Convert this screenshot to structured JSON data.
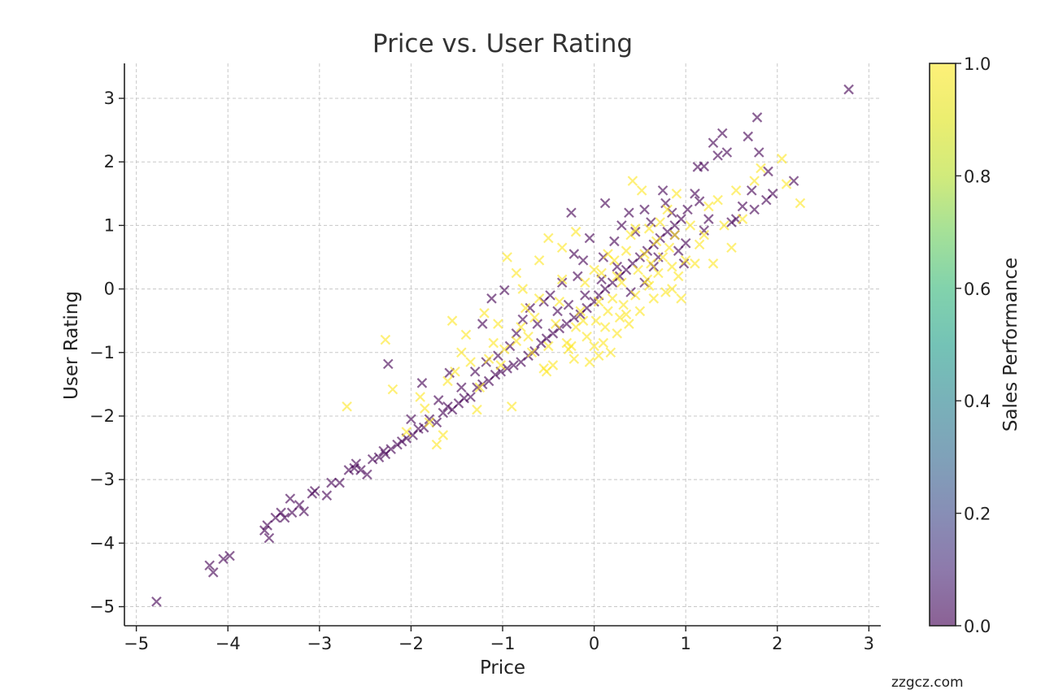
{
  "chart_data": {
    "type": "scatter",
    "title": "Price vs. User Rating",
    "xlabel": "Price",
    "ylabel": "User Rating",
    "xlim": [
      -5.13,
      3.13
    ],
    "ylim": [
      -5.3,
      3.55
    ],
    "xticks": [
      -5,
      -4,
      -3,
      -2,
      -1,
      0,
      1,
      2,
      3
    ],
    "xtick_labels": [
      "−5",
      "−4",
      "−3",
      "−2",
      "−1",
      "0",
      "1",
      "2",
      "3"
    ],
    "yticks": [
      -5,
      -4,
      -3,
      -2,
      -1,
      0,
      1,
      2,
      3
    ],
    "ytick_labels": [
      "−5",
      "−4",
      "−3",
      "−2",
      "−1",
      "0",
      "1",
      "2",
      "3"
    ],
    "grid": true,
    "marker": "x",
    "colorbar": {
      "label": "Sales Performance",
      "range": [
        0,
        1
      ],
      "ticks": [
        0.0,
        0.2,
        0.4,
        0.6,
        0.8,
        1.0
      ],
      "tick_labels": [
        "0.0",
        "0.2",
        "0.4",
        "0.6",
        "0.8",
        "1.0"
      ],
      "colormap": "viridis"
    },
    "series": [
      {
        "name": "Sales Performance = 0",
        "color_value": 0,
        "color": "#440154",
        "points": [
          [
            -4.78,
            -4.92
          ],
          [
            -4.2,
            -4.35
          ],
          [
            -4.16,
            -4.46
          ],
          [
            -4.05,
            -4.25
          ],
          [
            -3.98,
            -4.2
          ],
          [
            -3.6,
            -3.8
          ],
          [
            -3.57,
            -3.72
          ],
          [
            -3.55,
            -3.92
          ],
          [
            -3.48,
            -3.6
          ],
          [
            -3.42,
            -3.52
          ],
          [
            -3.38,
            -3.6
          ],
          [
            -3.3,
            -3.52
          ],
          [
            -3.22,
            -3.4
          ],
          [
            -3.17,
            -3.5
          ],
          [
            -3.08,
            -3.22
          ],
          [
            -2.92,
            -3.25
          ],
          [
            -2.87,
            -3.05
          ],
          [
            -2.78,
            -3.05
          ],
          [
            -2.68,
            -2.85
          ],
          [
            -2.62,
            -2.82
          ],
          [
            -2.55,
            -2.85
          ],
          [
            -2.48,
            -2.92
          ],
          [
            -2.42,
            -2.68
          ],
          [
            -2.35,
            -2.65
          ],
          [
            -2.28,
            -2.6
          ],
          [
            -2.22,
            -2.52
          ],
          [
            -2.15,
            -2.45
          ],
          [
            -2.1,
            -2.4
          ],
          [
            -2.05,
            -2.35
          ],
          [
            -1.98,
            -2.3
          ],
          [
            -1.92,
            -2.2
          ],
          [
            -1.86,
            -2.18
          ],
          [
            -1.8,
            -2.05
          ],
          [
            -1.72,
            -2.1
          ],
          [
            -1.65,
            -1.95
          ],
          [
            -1.6,
            -1.85
          ],
          [
            -1.55,
            -1.9
          ],
          [
            -1.48,
            -1.8
          ],
          [
            -1.42,
            -1.72
          ],
          [
            -1.35,
            -1.7
          ],
          [
            -1.28,
            -1.55
          ],
          [
            -1.22,
            -1.5
          ],
          [
            -1.15,
            -1.45
          ],
          [
            -1.08,
            -1.35
          ],
          [
            -1.02,
            -1.3
          ],
          [
            -0.95,
            -1.25
          ],
          [
            -0.88,
            -1.2
          ],
          [
            -0.8,
            -1.15
          ],
          [
            -0.72,
            -1.05
          ],
          [
            -0.65,
            -0.98
          ],
          [
            -0.58,
            -0.85
          ],
          [
            -0.52,
            -0.78
          ],
          [
            -0.45,
            -0.7
          ],
          [
            -0.38,
            -0.62
          ],
          [
            -0.3,
            -0.55
          ],
          [
            -0.22,
            -0.45
          ],
          [
            -0.15,
            -0.4
          ],
          [
            -0.08,
            -0.3
          ],
          [
            0.0,
            -0.2
          ],
          [
            0.05,
            -0.1
          ],
          [
            0.12,
            0.0
          ],
          [
            0.2,
            0.1
          ],
          [
            0.28,
            0.2
          ],
          [
            0.35,
            0.3
          ],
          [
            0.42,
            0.4
          ],
          [
            0.5,
            0.5
          ],
          [
            0.58,
            0.6
          ],
          [
            0.65,
            0.7
          ],
          [
            0.72,
            0.8
          ],
          [
            0.8,
            0.9
          ],
          [
            0.88,
            1.0
          ],
          [
            0.95,
            1.1
          ],
          [
            -2.25,
            -1.18
          ],
          [
            -1.88,
            -1.48
          ],
          [
            -1.58,
            -1.32
          ],
          [
            -1.22,
            -0.55
          ],
          [
            -1.12,
            -0.15
          ],
          [
            -0.98,
            -0.02
          ],
          [
            -0.78,
            -0.48
          ],
          [
            -0.55,
            -0.2
          ],
          [
            -0.35,
            0.1
          ],
          [
            -0.22,
            0.55
          ],
          [
            -0.12,
            0.45
          ],
          [
            -0.05,
            0.8
          ],
          [
            0.1,
            0.5
          ],
          [
            0.22,
            0.75
          ],
          [
            0.3,
            1.0
          ],
          [
            0.38,
            1.2
          ],
          [
            0.55,
            1.25
          ],
          [
            0.62,
            1.05
          ],
          [
            0.75,
            1.55
          ],
          [
            0.78,
            1.35
          ],
          [
            0.85,
            1.2
          ],
          [
            0.92,
            0.6
          ],
          [
            0.98,
            0.4
          ],
          [
            1.02,
            1.25
          ],
          [
            1.1,
            1.5
          ],
          [
            1.15,
            1.38
          ],
          [
            1.2,
            0.92
          ],
          [
            1.25,
            1.1
          ],
          [
            1.3,
            2.3
          ],
          [
            1.35,
            2.1
          ],
          [
            1.4,
            2.45
          ],
          [
            1.45,
            2.15
          ],
          [
            1.5,
            1.05
          ],
          [
            1.55,
            1.1
          ],
          [
            1.62,
            1.3
          ],
          [
            1.68,
            2.4
          ],
          [
            1.72,
            1.55
          ],
          [
            1.75,
            1.25
          ],
          [
            1.78,
            2.7
          ],
          [
            1.8,
            2.15
          ],
          [
            1.88,
            1.4
          ],
          [
            1.9,
            1.85
          ],
          [
            1.95,
            1.5
          ],
          [
            2.18,
            1.7
          ],
          [
            2.78,
            3.14
          ],
          [
            1.13,
            1.92
          ],
          [
            1.2,
            1.93
          ],
          [
            1.0,
            0.72
          ],
          [
            0.88,
            0.85
          ],
          [
            0.7,
            0.5
          ],
          [
            0.45,
            0.9
          ],
          [
            0.25,
            0.35
          ],
          [
            0.08,
            0.15
          ],
          [
            -0.1,
            -0.1
          ],
          [
            -0.18,
            0.2
          ],
          [
            -0.28,
            -0.25
          ],
          [
            -0.4,
            -0.35
          ],
          [
            -0.48,
            -0.1
          ],
          [
            -0.62,
            -0.55
          ],
          [
            -0.7,
            -0.3
          ],
          [
            -0.85,
            -0.7
          ],
          [
            -0.92,
            -0.9
          ],
          [
            -1.05,
            -1.05
          ],
          [
            -1.18,
            -1.15
          ],
          [
            -1.3,
            -1.3
          ],
          [
            -1.45,
            -1.55
          ],
          [
            -1.7,
            -1.75
          ],
          [
            -2.0,
            -2.05
          ],
          [
            -2.3,
            -2.55
          ],
          [
            -2.6,
            -2.75
          ],
          [
            -3.05,
            -3.18
          ],
          [
            -3.32,
            -3.3
          ],
          [
            -0.25,
            1.2
          ],
          [
            0.12,
            1.35
          ],
          [
            0.55,
            0.1
          ],
          [
            0.65,
            0.35
          ],
          [
            0.4,
            -0.05
          ]
        ]
      },
      {
        "name": "Sales Performance = 1",
        "color_value": 1,
        "color": "#fde725",
        "points": [
          [
            -2.7,
            -1.85
          ],
          [
            -2.28,
            -0.8
          ],
          [
            -2.2,
            -1.58
          ],
          [
            -1.9,
            -1.7
          ],
          [
            -1.85,
            -1.88
          ],
          [
            -1.72,
            -2.45
          ],
          [
            -1.65,
            -2.3
          ],
          [
            -1.6,
            -1.45
          ],
          [
            -1.52,
            -1.3
          ],
          [
            -1.45,
            -1.0
          ],
          [
            -1.4,
            -0.72
          ],
          [
            -1.35,
            -1.15
          ],
          [
            -1.28,
            -1.9
          ],
          [
            -1.25,
            -1.55
          ],
          [
            -1.2,
            -0.38
          ],
          [
            -1.15,
            -1.1
          ],
          [
            -1.1,
            -0.85
          ],
          [
            -1.05,
            -0.55
          ],
          [
            -1.02,
            -1.2
          ],
          [
            -0.98,
            -0.95
          ],
          [
            -0.9,
            -1.85
          ],
          [
            -0.85,
            -0.82
          ],
          [
            -0.8,
            -0.6
          ],
          [
            -0.78,
            0.0
          ],
          [
            -0.75,
            -0.3
          ],
          [
            -0.72,
            -0.75
          ],
          [
            -0.68,
            -1.0
          ],
          [
            -0.65,
            -0.45
          ],
          [
            -0.6,
            -0.15
          ],
          [
            -0.55,
            -1.25
          ],
          [
            -0.52,
            -1.3
          ],
          [
            -0.5,
            -0.9
          ],
          [
            -0.45,
            -1.2
          ],
          [
            -0.42,
            -0.55
          ],
          [
            -0.38,
            -0.2
          ],
          [
            -0.35,
            0.15
          ],
          [
            -0.3,
            -0.85
          ],
          [
            -0.28,
            -0.95
          ],
          [
            -0.22,
            -1.1
          ],
          [
            -0.2,
            -0.6
          ],
          [
            -0.15,
            -0.35
          ],
          [
            -0.1,
            0.1
          ],
          [
            -0.08,
            -0.75
          ],
          [
            -0.05,
            -1.15
          ],
          [
            0.0,
            -0.9
          ],
          [
            0.02,
            -0.5
          ],
          [
            0.05,
            -0.2
          ],
          [
            0.08,
            0.25
          ],
          [
            0.1,
            -0.85
          ],
          [
            0.12,
            -0.6
          ],
          [
            0.15,
            -0.35
          ],
          [
            0.18,
            -1.0
          ],
          [
            0.2,
            -0.15
          ],
          [
            0.22,
            0.45
          ],
          [
            0.25,
            -0.7
          ],
          [
            0.28,
            -0.45
          ],
          [
            0.3,
            0.1
          ],
          [
            0.32,
            -0.25
          ],
          [
            0.35,
            0.6
          ],
          [
            0.38,
            -0.55
          ],
          [
            0.4,
            0.85
          ],
          [
            0.42,
            1.7
          ],
          [
            0.45,
            -0.1
          ],
          [
            0.48,
            0.3
          ],
          [
            0.5,
            -0.35
          ],
          [
            0.52,
            1.55
          ],
          [
            0.55,
            0.55
          ],
          [
            0.58,
            0.15
          ],
          [
            0.6,
            0.95
          ],
          [
            0.62,
            0.4
          ],
          [
            0.65,
            -0.15
          ],
          [
            0.68,
            0.75
          ],
          [
            0.7,
            0.25
          ],
          [
            0.72,
            1.05
          ],
          [
            0.75,
            0.5
          ],
          [
            0.78,
            -0.05
          ],
          [
            0.8,
            1.25
          ],
          [
            0.82,
            0.65
          ],
          [
            0.85,
            0.35
          ],
          [
            0.88,
            0.85
          ],
          [
            0.9,
            1.5
          ],
          [
            0.92,
            0.2
          ],
          [
            0.95,
            -0.15
          ],
          [
            1.0,
            0.45
          ],
          [
            1.05,
            1.0
          ],
          [
            1.1,
            0.4
          ],
          [
            1.15,
            0.7
          ],
          [
            1.2,
            0.85
          ],
          [
            1.25,
            1.3
          ],
          [
            1.3,
            0.4
          ],
          [
            1.35,
            1.4
          ],
          [
            1.42,
            1.0
          ],
          [
            1.5,
            0.65
          ],
          [
            1.55,
            1.55
          ],
          [
            1.62,
            1.1
          ],
          [
            1.75,
            1.7
          ],
          [
            1.82,
            1.9
          ],
          [
            2.05,
            2.05
          ],
          [
            2.1,
            1.65
          ],
          [
            2.25,
            1.35
          ],
          [
            -0.95,
            0.5
          ],
          [
            -0.5,
            0.8
          ],
          [
            -0.2,
            0.9
          ],
          [
            0.0,
            0.3
          ],
          [
            0.15,
            0.55
          ],
          [
            -1.55,
            -0.5
          ],
          [
            -1.8,
            -2.1
          ],
          [
            -2.05,
            -2.25
          ],
          [
            -0.85,
            0.25
          ],
          [
            -0.6,
            0.45
          ],
          [
            -0.35,
            0.65
          ],
          [
            0.25,
            0.2
          ],
          [
            0.45,
            0.95
          ],
          [
            0.05,
            -1.05
          ],
          [
            0.35,
            -0.4
          ],
          [
            -0.12,
            -0.5
          ],
          [
            0.6,
            0.05
          ],
          [
            0.85,
            0.0
          ],
          [
            -0.25,
            -0.9
          ]
        ]
      }
    ]
  },
  "watermark": "zzgcz.com"
}
